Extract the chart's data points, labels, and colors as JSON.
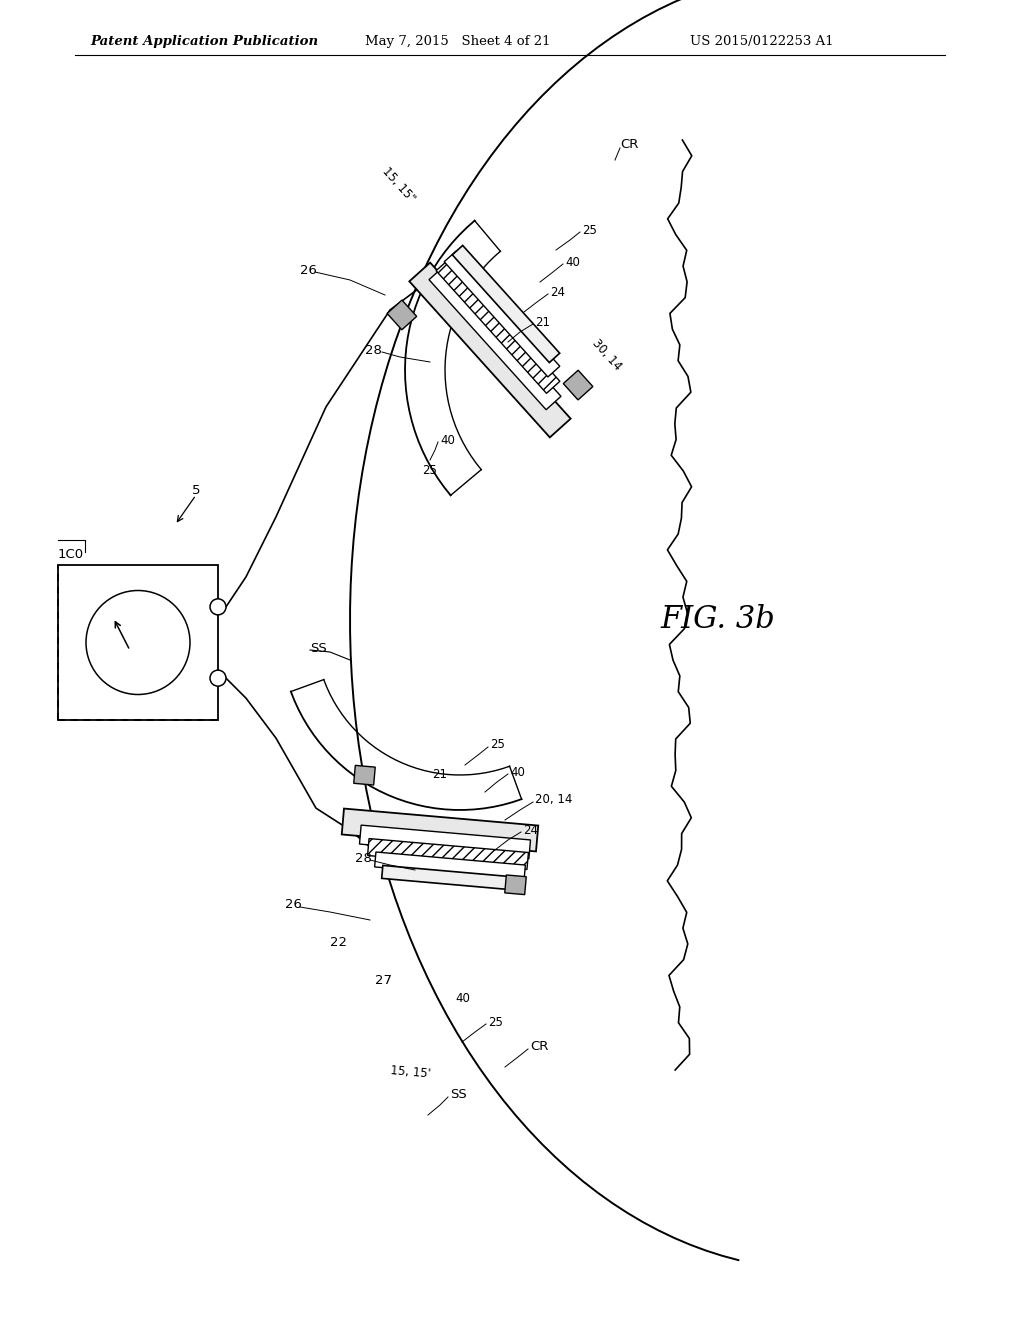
{
  "title_left": "Patent Application Publication",
  "title_mid": "May 7, 2015   Sheet 4 of 21",
  "title_right": "US 2015/0122253 A1",
  "fig_label": "FIG. 3b",
  "background_color": "#ffffff",
  "line_color": "#000000",
  "header_fontsize": 9.5,
  "label_fontsize": 8.5,
  "fig_label_fontsize": 22
}
